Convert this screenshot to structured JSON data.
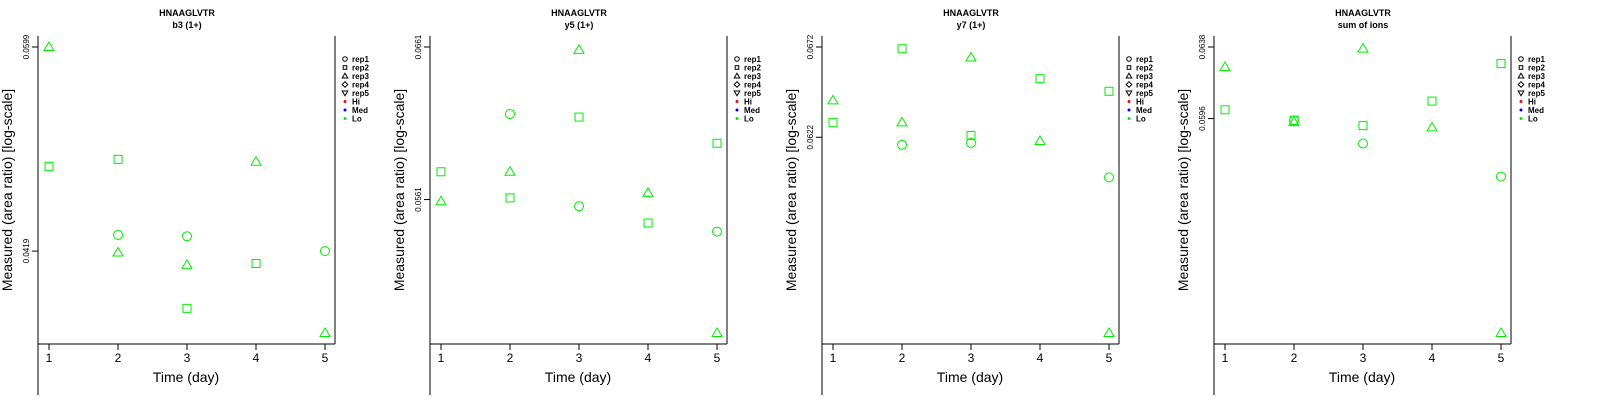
{
  "chart_data": [
    {
      "type": "scatter",
      "title": "HNAAGLVTR",
      "subtitle": "b3 (1+)",
      "xlabel": "Time (day)",
      "ylabel": "Measured (area ratio) [log-scale]",
      "x_ticks": [
        "1",
        "2",
        "3",
        "4",
        "5"
      ],
      "y_tick_labels": [
        "0.0599",
        "0.0419"
      ],
      "y_tick_values": [
        0.0599,
        0.0419
      ],
      "ylim": [
        0.0363,
        0.0599
      ],
      "log_y": true,
      "series": [
        {
          "name": "rep1",
          "marker": "circle",
          "color": "#00ee00",
          "points": [
            [
              2,
              0.0431
            ],
            [
              3,
              0.043
            ],
            [
              5,
              0.0419
            ]
          ]
        },
        {
          "name": "rep2",
          "marker": "square",
          "color": "#00ee00",
          "points": [
            [
              1,
              0.0486
            ],
            [
              2,
              0.0492
            ],
            [
              3,
              0.0379
            ],
            [
              4,
              0.041
            ]
          ]
        },
        {
          "name": "rep3",
          "marker": "triangle",
          "color": "#00ee00",
          "points": [
            [
              1,
              0.0599
            ],
            [
              2,
              0.0418
            ],
            [
              3,
              0.0409
            ],
            [
              4,
              0.049
            ],
            [
              5,
              0.0363
            ]
          ]
        },
        {
          "name": "rep4",
          "marker": "diamond",
          "color": "#00ee00",
          "points": []
        },
        {
          "name": "rep5",
          "marker": "triangle-down",
          "color": "#00ee00",
          "points": []
        },
        {
          "name": "Hi",
          "marker": "dot",
          "color": "#ff0000",
          "points": []
        },
        {
          "name": "Med",
          "marker": "dot",
          "color": "#0000ff",
          "points": []
        },
        {
          "name": "Lo",
          "marker": "dot",
          "color": "#00ee00",
          "points": []
        }
      ],
      "legend": "right",
      "grid": false
    },
    {
      "type": "scatter",
      "title": "HNAAGLVTR",
      "subtitle": "y5 (1+)",
      "xlabel": "Time (day)",
      "ylabel": "Measured (area ratio) [log-scale]",
      "x_ticks": [
        "1",
        "2",
        "3",
        "4",
        "5"
      ],
      "y_tick_labels": [
        "0.0661",
        "0.0561"
      ],
      "y_tick_values": [
        0.0661,
        0.0561
      ],
      "ylim": [
        0.0486,
        0.0661
      ],
      "log_y": true,
      "series": [
        {
          "name": "rep1",
          "marker": "circle",
          "color": "#00ee00",
          "points": [
            [
              2,
              0.0615
            ],
            [
              3,
              0.0557
            ],
            [
              5,
              0.0542
            ]
          ]
        },
        {
          "name": "rep2",
          "marker": "square",
          "color": "#00ee00",
          "points": [
            [
              1,
              0.0578
            ],
            [
              2,
              0.0562
            ],
            [
              3,
              0.0613
            ],
            [
              4,
              0.0547
            ],
            [
              5,
              0.0596
            ]
          ]
        },
        {
          "name": "rep3",
          "marker": "triangle",
          "color": "#00ee00",
          "points": [
            [
              1,
              0.056
            ],
            [
              2,
              0.0578
            ],
            [
              3,
              0.0659
            ],
            [
              4,
              0.0565
            ],
            [
              5,
              0.0486
            ]
          ]
        },
        {
          "name": "rep4",
          "marker": "diamond",
          "color": "#00ee00",
          "points": []
        },
        {
          "name": "rep5",
          "marker": "triangle-down",
          "color": "#00ee00",
          "points": []
        },
        {
          "name": "Hi",
          "marker": "dot",
          "color": "#ff0000",
          "points": []
        },
        {
          "name": "Med",
          "marker": "dot",
          "color": "#0000ff",
          "points": []
        },
        {
          "name": "Lo",
          "marker": "dot",
          "color": "#00ee00",
          "points": []
        }
      ],
      "legend": "right",
      "grid": false
    },
    {
      "type": "scatter",
      "title": "HNAAGLVTR",
      "subtitle": "y7 (1+)",
      "xlabel": "Time (day)",
      "ylabel": "Measured (area ratio) [log-scale]",
      "x_ticks": [
        "1",
        "2",
        "3",
        "4",
        "5"
      ],
      "y_tick_labels": [
        "0.0672",
        "0.0622"
      ],
      "y_tick_values": [
        0.0672,
        0.0622
      ],
      "ylim": [
        0.0526,
        0.0672
      ],
      "log_y": true,
      "series": [
        {
          "name": "rep1",
          "marker": "circle",
          "color": "#00ee00",
          "points": [
            [
              2,
              0.0618
            ],
            [
              3,
              0.0619
            ],
            [
              5,
              0.0601
            ]
          ]
        },
        {
          "name": "rep2",
          "marker": "square",
          "color": "#00ee00",
          "points": [
            [
              1,
              0.063
            ],
            [
              2,
              0.0671
            ],
            [
              3,
              0.0623
            ],
            [
              4,
              0.0654
            ],
            [
              5,
              0.0647
            ]
          ]
        },
        {
          "name": "rep3",
          "marker": "triangle",
          "color": "#00ee00",
          "points": [
            [
              1,
              0.0642
            ],
            [
              2,
              0.063
            ],
            [
              3,
              0.0666
            ],
            [
              4,
              0.062
            ],
            [
              5,
              0.0526
            ]
          ]
        },
        {
          "name": "rep4",
          "marker": "diamond",
          "color": "#00ee00",
          "points": []
        },
        {
          "name": "rep5",
          "marker": "triangle-down",
          "color": "#00ee00",
          "points": []
        },
        {
          "name": "Hi",
          "marker": "dot",
          "color": "#ff0000",
          "points": []
        },
        {
          "name": "Med",
          "marker": "dot",
          "color": "#0000ff",
          "points": []
        },
        {
          "name": "Lo",
          "marker": "dot",
          "color": "#00ee00",
          "points": []
        }
      ],
      "legend": "right",
      "grid": false
    },
    {
      "type": "scatter",
      "title": "HNAAGLVTR",
      "subtitle": "sum of ions",
      "xlabel": "Time (day)",
      "ylabel": "Measured (area ratio) [log-scale]",
      "x_ticks": [
        "1",
        "2",
        "3",
        "4",
        "5"
      ],
      "y_tick_labels": [
        "0.0638",
        "0.0596"
      ],
      "y_tick_values": [
        0.0638,
        0.0596
      ],
      "ylim": [
        0.0486,
        0.0638
      ],
      "log_y": true,
      "series": [
        {
          "name": "rep1",
          "marker": "circle",
          "color": "#00ee00",
          "points": [
            [
              2,
              0.0595
            ],
            [
              3,
              0.0582
            ],
            [
              5,
              0.0564
            ]
          ]
        },
        {
          "name": "rep2",
          "marker": "square",
          "color": "#00ee00",
          "points": [
            [
              1,
              0.0601
            ],
            [
              2,
              0.0595
            ],
            [
              3,
              0.0592
            ],
            [
              4,
              0.0606
            ],
            [
              5,
              0.0628
            ]
          ]
        },
        {
          "name": "rep3",
          "marker": "triangle",
          "color": "#00ee00",
          "points": [
            [
              1,
              0.0626
            ],
            [
              2,
              0.0594
            ],
            [
              3,
              0.0637
            ],
            [
              4,
              0.0591
            ],
            [
              5,
              0.0486
            ]
          ]
        },
        {
          "name": "rep4",
          "marker": "diamond",
          "color": "#00ee00",
          "points": []
        },
        {
          "name": "rep5",
          "marker": "triangle-down",
          "color": "#00ee00",
          "points": []
        },
        {
          "name": "Hi",
          "marker": "dot",
          "color": "#ff0000",
          "points": []
        },
        {
          "name": "Med",
          "marker": "dot",
          "color": "#0000ff",
          "points": []
        },
        {
          "name": "Lo",
          "marker": "dot",
          "color": "#00ee00",
          "points": []
        }
      ],
      "legend": "right",
      "grid": false
    }
  ]
}
